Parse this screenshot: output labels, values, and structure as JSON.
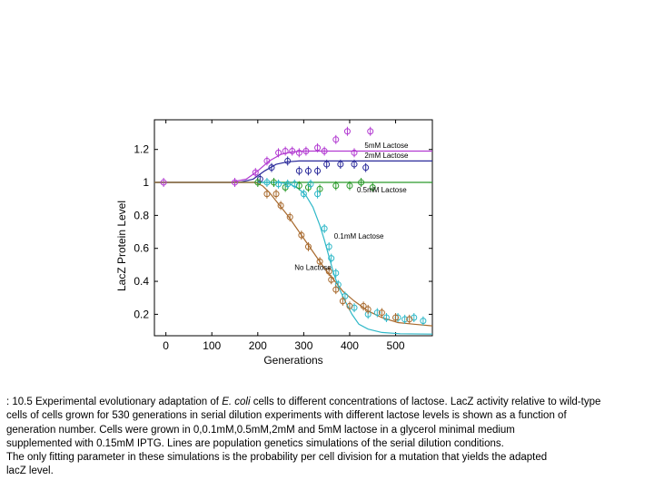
{
  "chart_data": {
    "type": "scatter",
    "title": "",
    "xlabel": "Generations",
    "ylabel": "LacZ Protein Level",
    "xlim": [
      -25,
      580
    ],
    "ylim": [
      0.07,
      1.38
    ],
    "xticks": [
      0,
      100,
      200,
      300,
      400,
      500
    ],
    "xtick_labels": [
      "0",
      "100",
      "200",
      "300",
      "400",
      "500"
    ],
    "yticks": [
      0.2,
      0.4,
      0.6,
      0.8,
      1.0,
      1.2
    ],
    "ytick_labels": [
      "0.2",
      "0.4",
      "0.6",
      "0.8",
      "1",
      "1.2"
    ],
    "grid": false,
    "legend": "none",
    "series": [
      {
        "name": "5mM Lactose",
        "color": "#b23bd1",
        "label_anchor": [
          480,
          1.21
        ],
        "points": [
          [
            -5,
            1.0
          ],
          [
            150,
            1.0
          ],
          [
            195,
            1.06
          ],
          [
            220,
            1.13
          ],
          [
            245,
            1.18
          ],
          [
            260,
            1.19
          ],
          [
            275,
            1.19
          ],
          [
            290,
            1.18
          ],
          [
            305,
            1.19
          ],
          [
            330,
            1.21
          ],
          [
            345,
            1.19
          ],
          [
            370,
            1.26
          ],
          [
            395,
            1.31
          ],
          [
            410,
            1.18
          ],
          [
            445,
            1.31
          ]
        ],
        "curve": [
          [
            -25,
            1.0
          ],
          [
            140,
            1.0
          ],
          [
            175,
            1.02
          ],
          [
            200,
            1.07
          ],
          [
            225,
            1.13
          ],
          [
            250,
            1.17
          ],
          [
            275,
            1.185
          ],
          [
            300,
            1.19
          ],
          [
            580,
            1.19
          ]
        ]
      },
      {
        "name": "2mM Lactose",
        "color": "#2a2a9a",
        "label_anchor": [
          480,
          1.15
        ],
        "points": [
          [
            205,
            1.02
          ],
          [
            230,
            1.09
          ],
          [
            265,
            1.13
          ],
          [
            290,
            1.07
          ],
          [
            310,
            1.07
          ],
          [
            330,
            1.07
          ],
          [
            350,
            1.11
          ],
          [
            380,
            1.11
          ],
          [
            410,
            1.11
          ],
          [
            435,
            1.09
          ]
        ],
        "curve": [
          [
            -25,
            1.0
          ],
          [
            160,
            1.0
          ],
          [
            190,
            1.02
          ],
          [
            215,
            1.07
          ],
          [
            240,
            1.11
          ],
          [
            265,
            1.125
          ],
          [
            290,
            1.13
          ],
          [
            580,
            1.13
          ]
        ]
      },
      {
        "name": "0.5mM Lactose",
        "color": "#2a9a2a",
        "label_anchor": [
          470,
          0.94
        ],
        "points": [
          [
            200,
            1.0
          ],
          [
            235,
            1.0
          ],
          [
            260,
            0.97
          ],
          [
            290,
            0.98
          ],
          [
            310,
            0.97
          ],
          [
            335,
            0.96
          ],
          [
            370,
            0.98
          ],
          [
            400,
            0.98
          ],
          [
            425,
            1.0
          ],
          [
            450,
            0.97
          ]
        ],
        "curve": [
          [
            -25,
            1.0
          ],
          [
            580,
            1.0
          ]
        ]
      },
      {
        "name": "0.1mM Lactose",
        "color": "#2fb8c8",
        "label_anchor": [
          420,
          0.66
        ],
        "points": [
          [
            220,
            1.0
          ],
          [
            245,
            0.99
          ],
          [
            265,
            0.99
          ],
          [
            280,
            0.99
          ],
          [
            300,
            0.93
          ],
          [
            315,
            0.99
          ],
          [
            330,
            0.93
          ],
          [
            345,
            0.72
          ],
          [
            355,
            0.61
          ],
          [
            360,
            0.54
          ],
          [
            370,
            0.45
          ],
          [
            375,
            0.38
          ],
          [
            390,
            0.31
          ],
          [
            410,
            0.24
          ],
          [
            440,
            0.2
          ],
          [
            460,
            0.21
          ],
          [
            480,
            0.18
          ],
          [
            505,
            0.18
          ],
          [
            520,
            0.17
          ],
          [
            540,
            0.18
          ],
          [
            560,
            0.16
          ]
        ],
        "curve": [
          [
            -25,
            1.0
          ],
          [
            245,
            1.0
          ],
          [
            270,
            0.99
          ],
          [
            290,
            0.96
          ],
          [
            305,
            0.92
          ],
          [
            320,
            0.85
          ],
          [
            335,
            0.74
          ],
          [
            345,
            0.65
          ],
          [
            355,
            0.55
          ],
          [
            365,
            0.45
          ],
          [
            375,
            0.37
          ],
          [
            390,
            0.28
          ],
          [
            405,
            0.2
          ],
          [
            420,
            0.14
          ],
          [
            440,
            0.11
          ],
          [
            470,
            0.09
          ],
          [
            510,
            0.082
          ],
          [
            580,
            0.08
          ]
        ]
      },
      {
        "name": "No Lactose",
        "color": "#a86a2e",
        "label_anchor": [
          320,
          0.47
        ],
        "points": [
          [
            220,
            0.93
          ],
          [
            240,
            0.93
          ],
          [
            250,
            0.86
          ],
          [
            270,
            0.79
          ],
          [
            295,
            0.68
          ],
          [
            310,
            0.61
          ],
          [
            335,
            0.52
          ],
          [
            355,
            0.46
          ],
          [
            360,
            0.41
          ],
          [
            370,
            0.35
          ],
          [
            385,
            0.28
          ],
          [
            400,
            0.25
          ],
          [
            430,
            0.25
          ],
          [
            440,
            0.23
          ],
          [
            470,
            0.21
          ],
          [
            500,
            0.18
          ],
          [
            530,
            0.17
          ]
        ],
        "curve": [
          [
            -25,
            1.0
          ],
          [
            195,
            1.0
          ],
          [
            210,
            0.98
          ],
          [
            225,
            0.94
          ],
          [
            245,
            0.87
          ],
          [
            265,
            0.8
          ],
          [
            285,
            0.72
          ],
          [
            305,
            0.64
          ],
          [
            325,
            0.56
          ],
          [
            345,
            0.48
          ],
          [
            365,
            0.41
          ],
          [
            385,
            0.34
          ],
          [
            410,
            0.28
          ],
          [
            440,
            0.22
          ],
          [
            470,
            0.18
          ],
          [
            505,
            0.15
          ],
          [
            540,
            0.14
          ],
          [
            580,
            0.13
          ]
        ]
      }
    ]
  },
  "caption": {
    "lines": [
      ": 10.5 Experimental evolutionary adaptation of |E. coli| cells to different concentrations of lactose. LacZ activity relative to wild-type",
      "cells of cells grown for 530 generations in serial dilution experiments with different lactose levels is shown as a function of",
      "generation number. Cells were grown in 0,0.1mM,0.5mM,2mM and 5mM lactose in a glycerol minimal medium",
      "supplemented with 0.15mM IPTG. Lines are population genetics simulations of the serial dilution conditions.",
      "The only fitting parameter in these simulations is the probability per cell division for a mutation that yields the adapted",
      " lacZ level."
    ]
  }
}
